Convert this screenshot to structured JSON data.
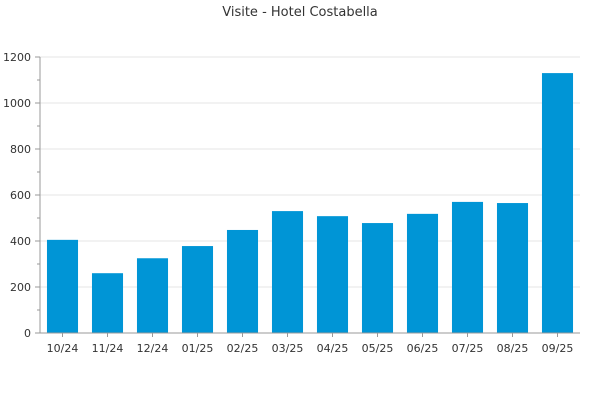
{
  "chart_data": {
    "type": "bar",
    "title": "Visite - Hotel Costabella",
    "xlabel": "",
    "ylabel": "",
    "categories": [
      "10/24",
      "11/24",
      "12/24",
      "01/25",
      "02/25",
      "03/25",
      "04/25",
      "05/25",
      "06/25",
      "07/25",
      "08/25",
      "09/25"
    ],
    "series": [
      {
        "values": [
          405,
          260,
          325,
          378,
          448,
          530,
          508,
          478,
          518,
          570,
          565,
          1130
        ]
      }
    ],
    "ylim": [
      0,
      1200
    ],
    "yticks": [
      0,
      200,
      400,
      600,
      800,
      1000,
      1200
    ],
    "grid": true,
    "legend": "none",
    "bar_color": "#0095d6"
  }
}
